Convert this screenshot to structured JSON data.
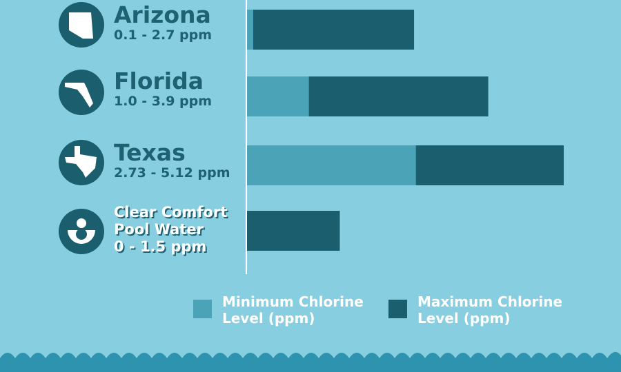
{
  "chart_data": {
    "type": "bar",
    "categories": [
      "Arizona",
      "Florida",
      "Texas",
      "Clear Comfort Pool Water"
    ],
    "range_labels": [
      "0.1 - 2.7 ppm",
      "1.0 - 3.9 ppm",
      "2.73 - 5.12 ppm",
      "0 - 1.5 ppm"
    ],
    "series": [
      {
        "name": "Minimum Chlorine Level (ppm)",
        "color": "#4ba3b8",
        "values": [
          0.1,
          1.0,
          2.73,
          0
        ]
      },
      {
        "name": "Maximum Chlorine Level (ppm)",
        "color": "#1b5f6e",
        "values": [
          2.7,
          3.9,
          5.12,
          1.5
        ]
      }
    ]
  }
}
